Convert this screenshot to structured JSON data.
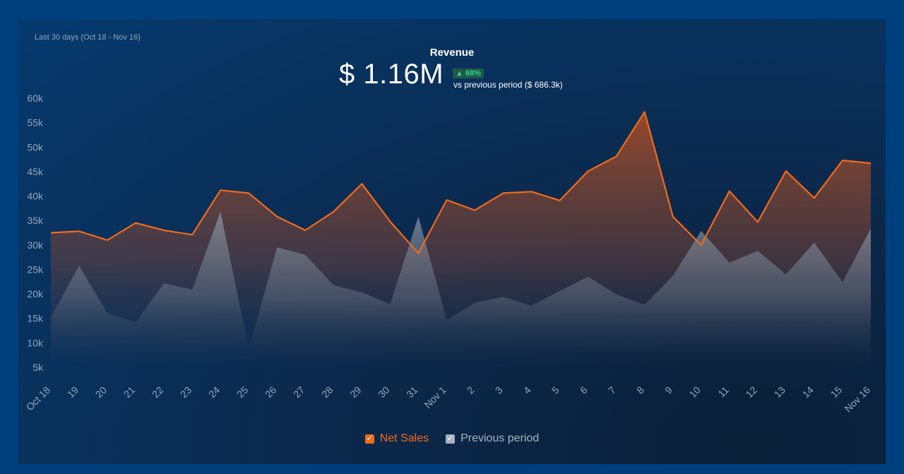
{
  "header": {
    "period": "Last 30 days (Oct 18 - Nov 16)",
    "title": "Revenue",
    "value": "$ 1.16M",
    "change_badge": "▲ 68%",
    "comparison": "vs previous period ($ 686.3k)"
  },
  "colors": {
    "net_sales": "#f26a1b",
    "previous": "#a9b4c0",
    "axis_text": "#8fa6bf"
  },
  "chart_data": {
    "type": "area",
    "title": "Revenue",
    "categories": [
      "Oct 18",
      "19",
      "20",
      "21",
      "22",
      "23",
      "24",
      "25",
      "26",
      "27",
      "28",
      "29",
      "30",
      "31",
      "Nov 1",
      "2",
      "3",
      "4",
      "5",
      "6",
      "7",
      "8",
      "9",
      "10",
      "11",
      "12",
      "13",
      "14",
      "15",
      "Nov 16"
    ],
    "ylim": [
      5000,
      60000
    ],
    "yticks": [
      {
        "value": 60000,
        "label": "60k"
      },
      {
        "value": 55000,
        "label": "55k"
      },
      {
        "value": 50000,
        "label": "50k"
      },
      {
        "value": 45000,
        "label": "45k"
      },
      {
        "value": 40000,
        "label": "40k"
      },
      {
        "value": 35000,
        "label": "35k"
      },
      {
        "value": 30000,
        "label": "30k"
      },
      {
        "value": 25000,
        "label": "25k"
      },
      {
        "value": 20000,
        "label": "20k"
      },
      {
        "value": 15000,
        "label": "15k"
      },
      {
        "value": 10000,
        "label": "10k"
      },
      {
        "value": 5000,
        "label": "5k"
      }
    ],
    "series": [
      {
        "name": "Net Sales",
        "values": [
          32500,
          32800,
          31000,
          34500,
          33000,
          32100,
          41200,
          40600,
          35800,
          33000,
          36800,
          42500,
          34800,
          28300,
          39200,
          37100,
          40600,
          40900,
          39100,
          45100,
          48100,
          57200,
          35800,
          30000,
          41000,
          34700,
          45100,
          39600,
          47300,
          46700
        ]
      },
      {
        "name": "Previous period",
        "values": [
          15200,
          25800,
          16000,
          14200,
          22200,
          20900,
          36800,
          8800,
          29500,
          28000,
          21800,
          20300,
          17900,
          35800,
          14700,
          18200,
          19400,
          17600,
          20600,
          23500,
          19900,
          17800,
          23700,
          32900,
          26400,
          28800,
          24000,
          30500,
          22400,
          33400
        ]
      }
    ]
  },
  "legend": {
    "net_sales": "Net Sales",
    "previous": "Previous period",
    "check": "✓"
  }
}
